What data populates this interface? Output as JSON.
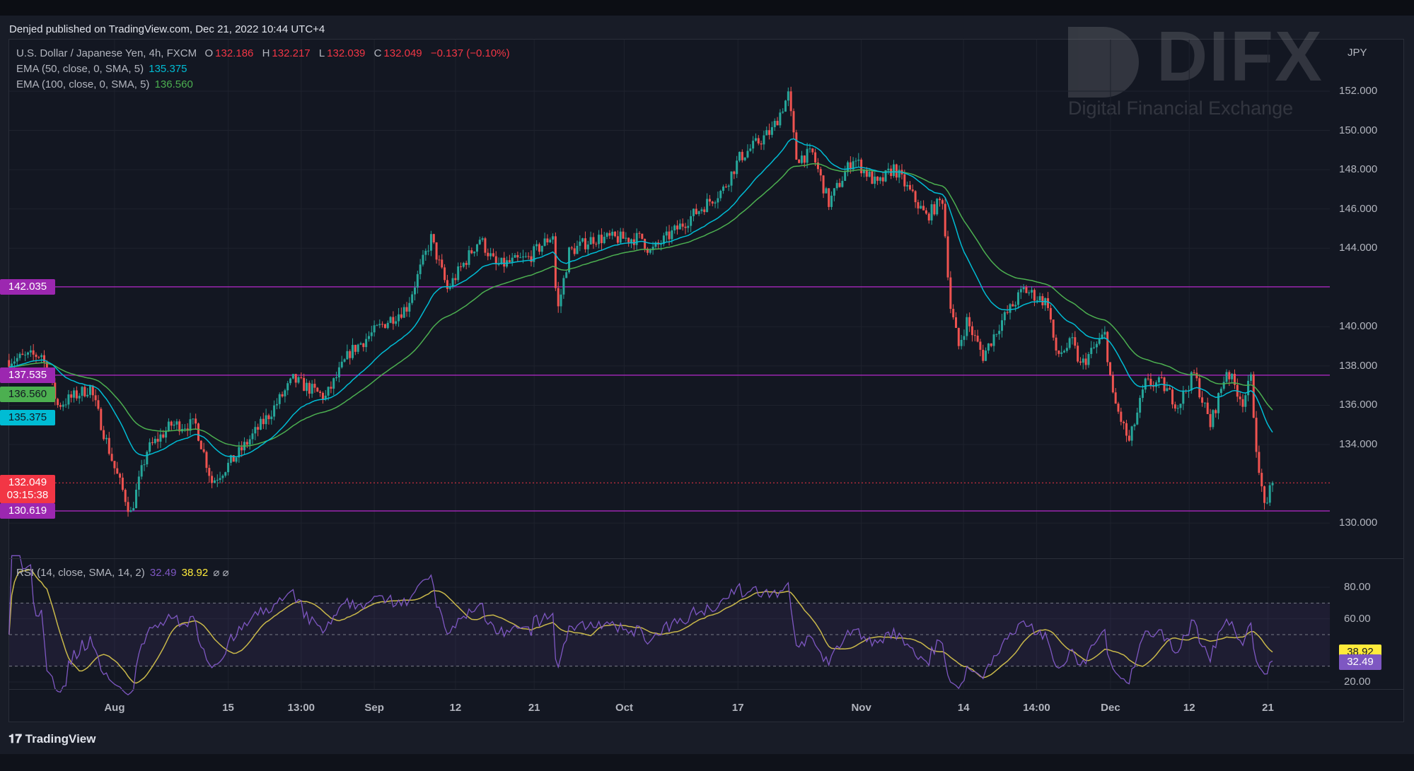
{
  "header": {
    "published": "Denjed published on TradingView.com, Dec 21, 2022 10:44 UTC+4"
  },
  "symbol": {
    "name": "U.S. Dollar / Japanese Yen, 4h, FXCM",
    "o_label": "O",
    "o": "132.186",
    "h_label": "H",
    "h": "132.217",
    "l_label": "L",
    "l": "132.039",
    "c_label": "C",
    "c": "132.049",
    "change": "−0.137 (−0.10%)"
  },
  "ema50": {
    "label": "EMA (50, close, 0, SMA, 5)",
    "value": "135.375",
    "color": "#00bcd4"
  },
  "ema100": {
    "label": "EMA (100, close, 0, SMA, 5)",
    "value": "136.560",
    "color": "#4caf50"
  },
  "rsi": {
    "label": "RSI (14, close, SMA, 14, 2)",
    "value": "32.49",
    "signal": "38.92",
    "icons": "⌀ ⌀",
    "color": "#7e57c2",
    "signal_color": "#c9b84a"
  },
  "watermark": {
    "brand": "DIFX",
    "tagline": "Digital Financial Exchange"
  },
  "footer": {
    "logo": "TradingView"
  },
  "chart_data": {
    "type": "candlestick",
    "title": "U.S. Dollar / Japanese Yen, 4h, FXCM",
    "currency": "JPY",
    "ylim": [
      129,
      153
    ],
    "y_ticks": [
      "152.000",
      "150.000",
      "148.000",
      "146.000",
      "144.000",
      "140.000",
      "138.000",
      "136.000",
      "134.000",
      "130.000"
    ],
    "x_ticks": [
      {
        "label": "Aug",
        "day": 13
      },
      {
        "label": "15",
        "day": 27
      },
      {
        "label": "13:00",
        "day": 36
      },
      {
        "label": "Sep",
        "day": 45
      },
      {
        "label": "12",
        "day": 55
      },
      {
        "label": "21",
        "day": 64.7
      },
      {
        "label": "Oct",
        "day": 75.8
      },
      {
        "label": "17",
        "day": 89.8
      },
      {
        "label": "Nov",
        "day": 105
      },
      {
        "label": "14",
        "day": 117.6
      },
      {
        "label": "14:00",
        "day": 126.6
      },
      {
        "label": "Dec",
        "day": 135.7
      },
      {
        "label": "12",
        "day": 145.4
      },
      {
        "label": "21",
        "day": 155.1
      }
    ],
    "close_path_approx": [
      [
        0,
        138.3
      ],
      [
        4,
        138.6
      ],
      [
        6,
        136.0
      ],
      [
        10,
        136.9
      ],
      [
        13,
        132.8
      ],
      [
        15,
        130.5
      ],
      [
        17,
        133.7
      ],
      [
        20,
        135.0
      ],
      [
        23,
        135.0
      ],
      [
        25,
        132.1
      ],
      [
        28,
        133.4
      ],
      [
        32,
        135.5
      ],
      [
        35,
        137.3
      ],
      [
        39,
        136.4
      ],
      [
        42,
        138.7
      ],
      [
        46,
        140.1
      ],
      [
        49,
        141.0
      ],
      [
        52,
        144.5
      ],
      [
        54,
        141.9
      ],
      [
        58,
        144.5
      ],
      [
        60,
        143.1
      ],
      [
        64,
        143.5
      ],
      [
        67,
        144.7
      ],
      [
        67.5,
        140.6
      ],
      [
        69,
        143.8
      ],
      [
        72,
        144.5
      ],
      [
        78,
        144.5
      ],
      [
        79,
        143.8
      ],
      [
        84,
        145.6
      ],
      [
        88,
        147.0
      ],
      [
        90,
        148.6
      ],
      [
        94,
        150.0
      ],
      [
        96,
        151.8
      ],
      [
        97,
        148.6
      ],
      [
        99,
        148.8
      ],
      [
        101,
        146.3
      ],
      [
        104,
        148.6
      ],
      [
        107,
        147.2
      ],
      [
        109,
        148.1
      ],
      [
        113,
        145.6
      ],
      [
        115,
        146.5
      ],
      [
        116,
        141.0
      ],
      [
        117,
        139.0
      ],
      [
        118,
        140.3
      ],
      [
        120,
        138.5
      ],
      [
        122,
        140.1
      ],
      [
        125,
        141.9
      ],
      [
        128,
        141.2
      ],
      [
        129,
        138.5
      ],
      [
        131,
        139.2
      ],
      [
        132,
        138.0
      ],
      [
        135,
        139.6
      ],
      [
        136,
        136.4
      ],
      [
        138,
        134.1
      ],
      [
        140,
        137.1
      ],
      [
        142,
        137.1
      ],
      [
        144,
        136.0
      ],
      [
        146,
        137.6
      ],
      [
        148,
        135.0
      ],
      [
        150,
        137.8
      ],
      [
        152,
        136.2
      ],
      [
        153,
        137.3
      ],
      [
        154,
        132.3
      ],
      [
        155,
        130.7
      ],
      [
        155.5,
        132.049
      ]
    ],
    "horizontal_levels": [
      {
        "price": 142.035,
        "label": "142.035",
        "color": "#9c27b0"
      },
      {
        "price": 137.535,
        "label": "137.535",
        "color": "#9c27b0"
      },
      {
        "price": 130.619,
        "label": "130.619",
        "color": "#9c27b0"
      }
    ],
    "last_price": {
      "price": 132.049,
      "label": "132.049",
      "countdown": "03:15:38",
      "color": "#f23645"
    },
    "ema_tags": [
      {
        "price": 136.56,
        "label": "136.560",
        "color": "#4caf50"
      },
      {
        "price": 135.375,
        "label": "135.375",
        "color": "#00bcd4"
      }
    ],
    "rsi_pane": {
      "ylim": [
        10,
        90
      ],
      "y_ticks": [
        "80.00",
        "60.00",
        "20.00"
      ],
      "bands": [
        70,
        50,
        30
      ],
      "last_rsi": 32.49,
      "last_signal": 38.92
    }
  }
}
